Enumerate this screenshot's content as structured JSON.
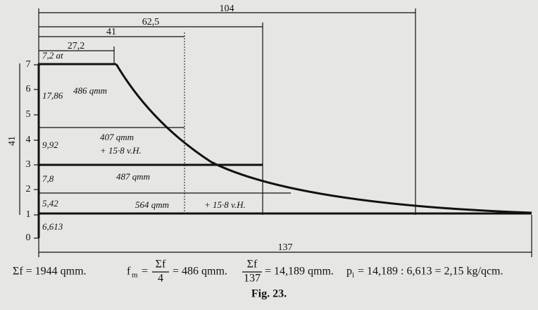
{
  "figure": {
    "dimensions": {
      "d104": "104",
      "d62": "62,5",
      "d41": "41",
      "d27": "27,2",
      "d137": "137",
      "left41": "41"
    },
    "pressure_top": "7,2 at",
    "axis_labels": [
      "7",
      "6",
      "5",
      "4",
      "3",
      "2",
      "1",
      "0"
    ],
    "heights": [
      "17,86",
      "9,92",
      "7,8",
      "5,42",
      "6,613"
    ],
    "areas": [
      "486 qmm",
      "407 qmm",
      "+ 15·8 v.H.",
      "487 qmm",
      "564 qmm",
      "+ 15·8 v.H."
    ],
    "formula": {
      "sum": "Σf = 1944 qmm.",
      "fm": "f",
      "fm_sub": "m",
      "eq": "=",
      "frac1_num": "Σf",
      "frac1_den": "4",
      "res1": "= 486 qmm.",
      "frac2_num": "Σf",
      "frac2_den": "137",
      "res2": "= 14,189 qmm.",
      "pi": "p",
      "pi_sub": "i",
      "res3": "= 14,189 : 6,613 = 2,15 kg/qcm."
    },
    "caption": "Fig. 23."
  }
}
